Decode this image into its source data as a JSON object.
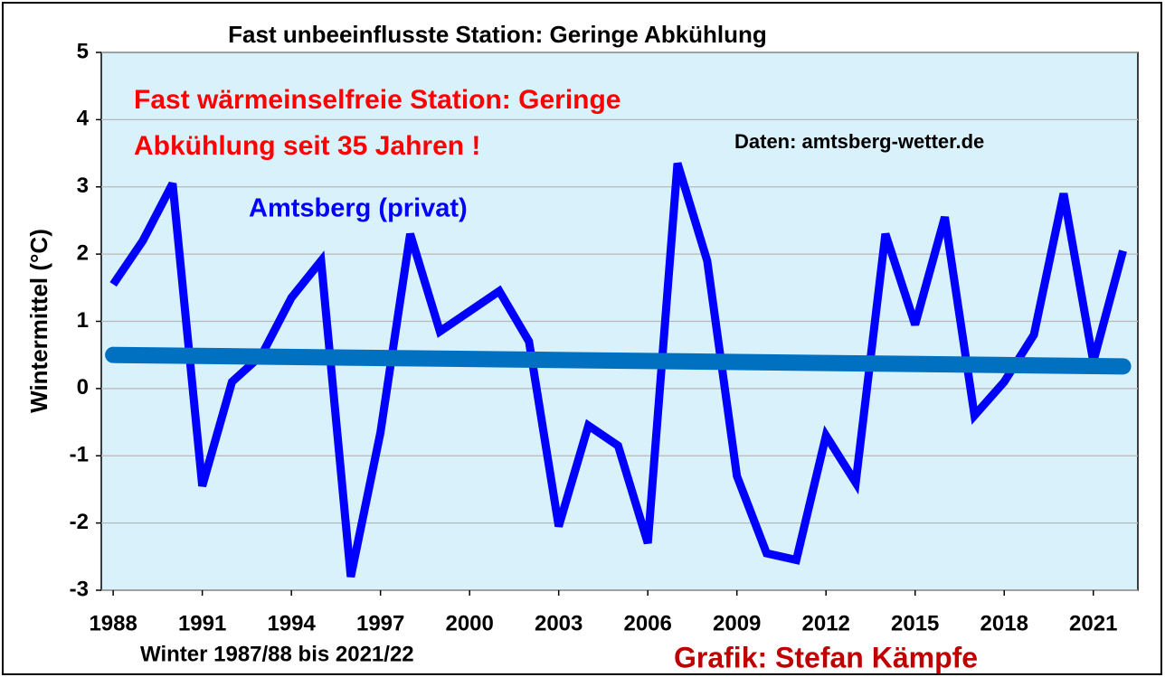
{
  "chart_data": {
    "type": "line",
    "title": "Fast unbeeinflusste Station: Geringe Abkühlung",
    "ylabel": "Wintermittel (°C)",
    "xlabel": "Winter 1987/88 bis 2021/22",
    "x": [
      1988,
      1989,
      1990,
      1991,
      1992,
      1993,
      1994,
      1995,
      1996,
      1997,
      1998,
      1999,
      2000,
      2001,
      2002,
      2003,
      2004,
      2005,
      2006,
      2007,
      2008,
      2009,
      2010,
      2011,
      2012,
      2013,
      2014,
      2015,
      2016,
      2017,
      2018,
      2019,
      2020,
      2021,
      2022
    ],
    "series": [
      {
        "name": "Amtsberg (privat)",
        "color": "#0000ff",
        "values": [
          1.55,
          2.2,
          3.05,
          -1.45,
          0.1,
          0.5,
          1.35,
          1.9,
          -2.8,
          -0.65,
          2.3,
          0.85,
          1.15,
          1.45,
          0.7,
          -2.05,
          -0.55,
          -0.85,
          -2.3,
          3.35,
          1.9,
          -1.3,
          -2.45,
          -2.55,
          -0.7,
          -1.4,
          2.3,
          0.95,
          2.55,
          -0.4,
          0.1,
          0.8,
          2.9,
          0.4,
          2.05
        ]
      }
    ],
    "trendline": {
      "x": [
        1988,
        2022
      ],
      "values": [
        0.5,
        0.33
      ],
      "color": "#0070c0"
    },
    "xlim": [
      1987.6,
      2022.5
    ],
    "xticks": [
      1988,
      1991,
      1994,
      1997,
      2000,
      2003,
      2006,
      2009,
      2012,
      2015,
      2018,
      2021
    ],
    "ylim": [
      -3,
      5
    ],
    "yticks": [
      -3,
      -2,
      -1,
      0,
      1,
      2,
      3,
      4,
      5
    ],
    "grid": true,
    "annotations": [
      {
        "text": "Fast wärmeinselfreie Station: Geringe",
        "color": "#ff0000"
      },
      {
        "text": "Abkühlung seit 35 Jahren !",
        "color": "#ff0000"
      },
      {
        "text": "Daten: amtsberg-wetter.de",
        "color": "#000000"
      },
      {
        "text": "Grafik: Stefan Kämpfe",
        "color": "#c00000"
      }
    ]
  }
}
